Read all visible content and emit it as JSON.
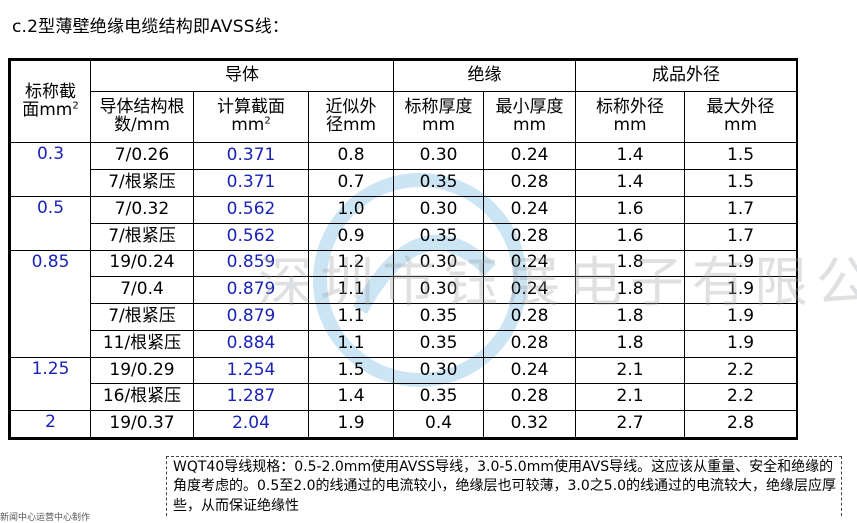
{
  "caption": "c.2型薄壁绝缘电缆结构即AVSS线：",
  "table": {
    "header": {
      "area_line1": "标称截",
      "area_line2": "面mm",
      "area_sup": "2",
      "conductor": "导体",
      "insulation": "绝缘",
      "outer": "成品外径",
      "structure_line1": "导体结构根",
      "structure_line2": "数/mm",
      "calc_line1": "计算截面",
      "calc_line2": "mm",
      "calc_sup": "2",
      "approx_line1": "近似外",
      "approx_line2": "径mm",
      "nom_thick_line1": "标称厚度",
      "nom_thick_line2": "mm",
      "min_thick_line1": "最小厚度",
      "min_thick_line2": "mm",
      "nom_od_line1": "标称外径",
      "nom_od_line2": "mm",
      "max_od_line1": "最大外径",
      "max_od_line2": "mm"
    },
    "groups": [
      {
        "area": "0.3",
        "rows": [
          [
            "7/0.26",
            "0.371",
            "0.8",
            "0.30",
            "0.24",
            "1.4",
            "1.5"
          ],
          [
            "7/根紧压",
            "0.371",
            "0.7",
            "0.35",
            "0.28",
            "1.4",
            "1.5"
          ]
        ]
      },
      {
        "area": "0.5",
        "rows": [
          [
            "7/0.32",
            "0.562",
            "1.0",
            "0.30",
            "0.24",
            "1.6",
            "1.7"
          ],
          [
            "7/根紧压",
            "0.562",
            "0.9",
            "0.35",
            "0.28",
            "1.6",
            "1.7"
          ]
        ]
      },
      {
        "area": "0.85",
        "rows": [
          [
            "19/0.24",
            "0.859",
            "1.2",
            "0.30",
            "0.24",
            "1.8",
            "1.9"
          ],
          [
            "7/0.4",
            "0.879",
            "1.1",
            "0.30",
            "0.24",
            "1.8",
            "1.9"
          ],
          [
            "7/根紧压",
            "0.879",
            "1.1",
            "0.35",
            "0.28",
            "1.8",
            "1.9"
          ],
          [
            "11/根紧压",
            "0.884",
            "1.1",
            "0.35",
            "0.28",
            "1.8",
            "1.9"
          ]
        ]
      },
      {
        "area": "1.25",
        "rows": [
          [
            "19/0.29",
            "1.254",
            "1.5",
            "0.30",
            "0.24",
            "2.1",
            "2.2"
          ],
          [
            "16/根紧压",
            "1.287",
            "1.4",
            "0.35",
            "0.28",
            "2.1",
            "2.2"
          ]
        ]
      },
      {
        "area": "2",
        "rows": [
          [
            "19/0.37",
            "2.04",
            "1.9",
            "0.4",
            "0.32",
            "2.7",
            "2.8"
          ]
        ]
      }
    ]
  },
  "watermark": "深圳市钰展电子有限公司",
  "watermark_logo_letters": "AVC",
  "note": "WQT40导线规格：0.5-2.0mm使用AVSS导线，3.0-5.0mm使用AVS导线。这应该从重量、安全和绝缘的角度考虑的。0.5至2.0的线通过的电流较小，绝缘层也可较薄，3.0之5.0的线通过的电流较大，绝缘层应厚些，从而保证绝缘性",
  "footer_ghost": "新闻中心运营中心制作"
}
